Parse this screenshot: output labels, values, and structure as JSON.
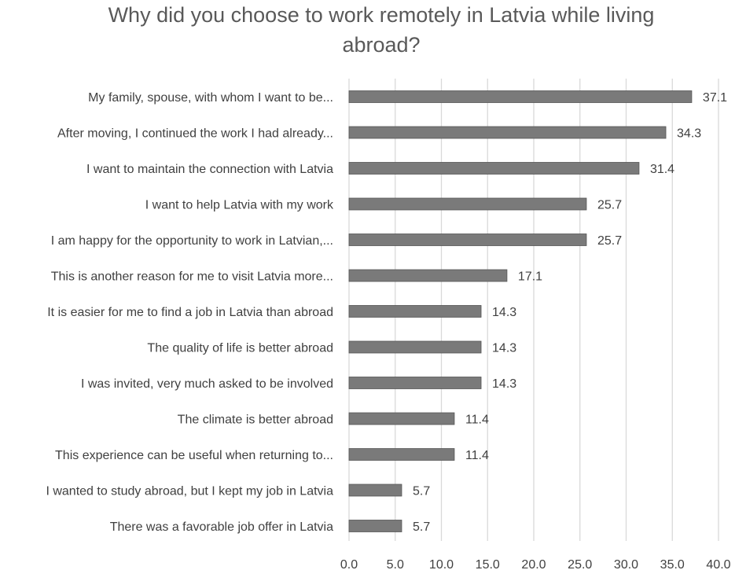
{
  "chart_data": {
    "type": "bar",
    "orientation": "horizontal",
    "title": "Why did you choose to work remotely in Latvia while living abroad?",
    "xlabel": "",
    "ylabel": "",
    "xlim": [
      0,
      40
    ],
    "x_ticks": [
      "0.0",
      "5.0",
      "10.0",
      "15.0",
      "20.0",
      "25.0",
      "30.0",
      "35.0",
      "40.0"
    ],
    "grid": "vertical",
    "legend": "none",
    "bar_color": "#7a7a7a",
    "categories": [
      "My family, spouse, with whom I want to be...",
      "After moving, I continued the work I had already...",
      "I want to maintain the connection with Latvia",
      "I want to help Latvia with my work",
      "I am happy for the opportunity to work in Latvian,...",
      "This is another reason for me to visit Latvia more...",
      "It is easier for me to find a job in Latvia than abroad",
      "The quality of life is better abroad",
      "I was invited, very much asked to be involved",
      "The climate is better abroad",
      "This experience can be useful when returning to...",
      "I wanted to study abroad, but I kept my job in Latvia",
      "There was a favorable job offer in Latvia"
    ],
    "values": [
      37.1,
      34.3,
      31.4,
      25.7,
      25.7,
      17.1,
      14.3,
      14.3,
      14.3,
      11.4,
      11.4,
      5.7,
      5.7
    ],
    "value_labels": [
      "37.1",
      "34.3",
      "31.4",
      "25.7",
      "25.7",
      "17.1",
      "14.3",
      "14.3",
      "14.3",
      "11.4",
      "11.4",
      "5.7",
      "5.7"
    ]
  }
}
